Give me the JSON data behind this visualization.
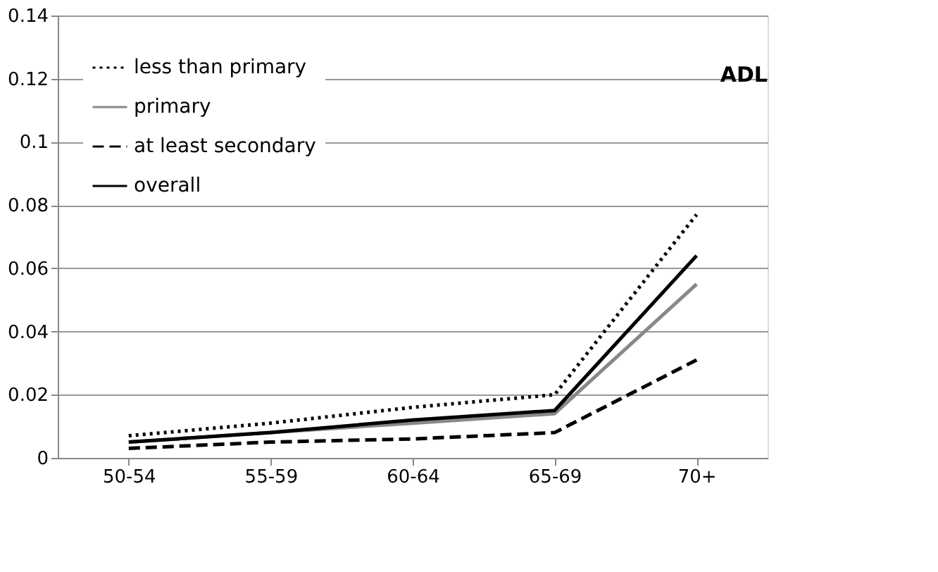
{
  "chart_data": {
    "type": "line",
    "title": "ADL",
    "categories": [
      "50-54",
      "55-59",
      "60-64",
      "65-69",
      "70+"
    ],
    "series": [
      {
        "name": "less than primary",
        "color": "#000000",
        "line_style": "dotted",
        "values": [
          0.007,
          0.011,
          0.016,
          0.02,
          0.077
        ]
      },
      {
        "name": "primary",
        "color": "#888888",
        "line_style": "solid",
        "values": [
          0.005,
          0.008,
          0.011,
          0.014,
          0.055
        ]
      },
      {
        "name": "at least secondary",
        "color": "#000000",
        "line_style": "dashed",
        "values": [
          0.003,
          0.005,
          0.006,
          0.008,
          0.031
        ]
      },
      {
        "name": "overall",
        "color": "#000000",
        "line_style": "solid",
        "values": [
          0.005,
          0.008,
          0.012,
          0.015,
          0.064
        ]
      }
    ],
    "ylim": [
      0,
      0.14
    ],
    "yticks": [
      0,
      0.02,
      0.04,
      0.06,
      0.08,
      0.1,
      0.12,
      0.14
    ],
    "grid": "y",
    "legend": "top left",
    "marker": "none"
  }
}
